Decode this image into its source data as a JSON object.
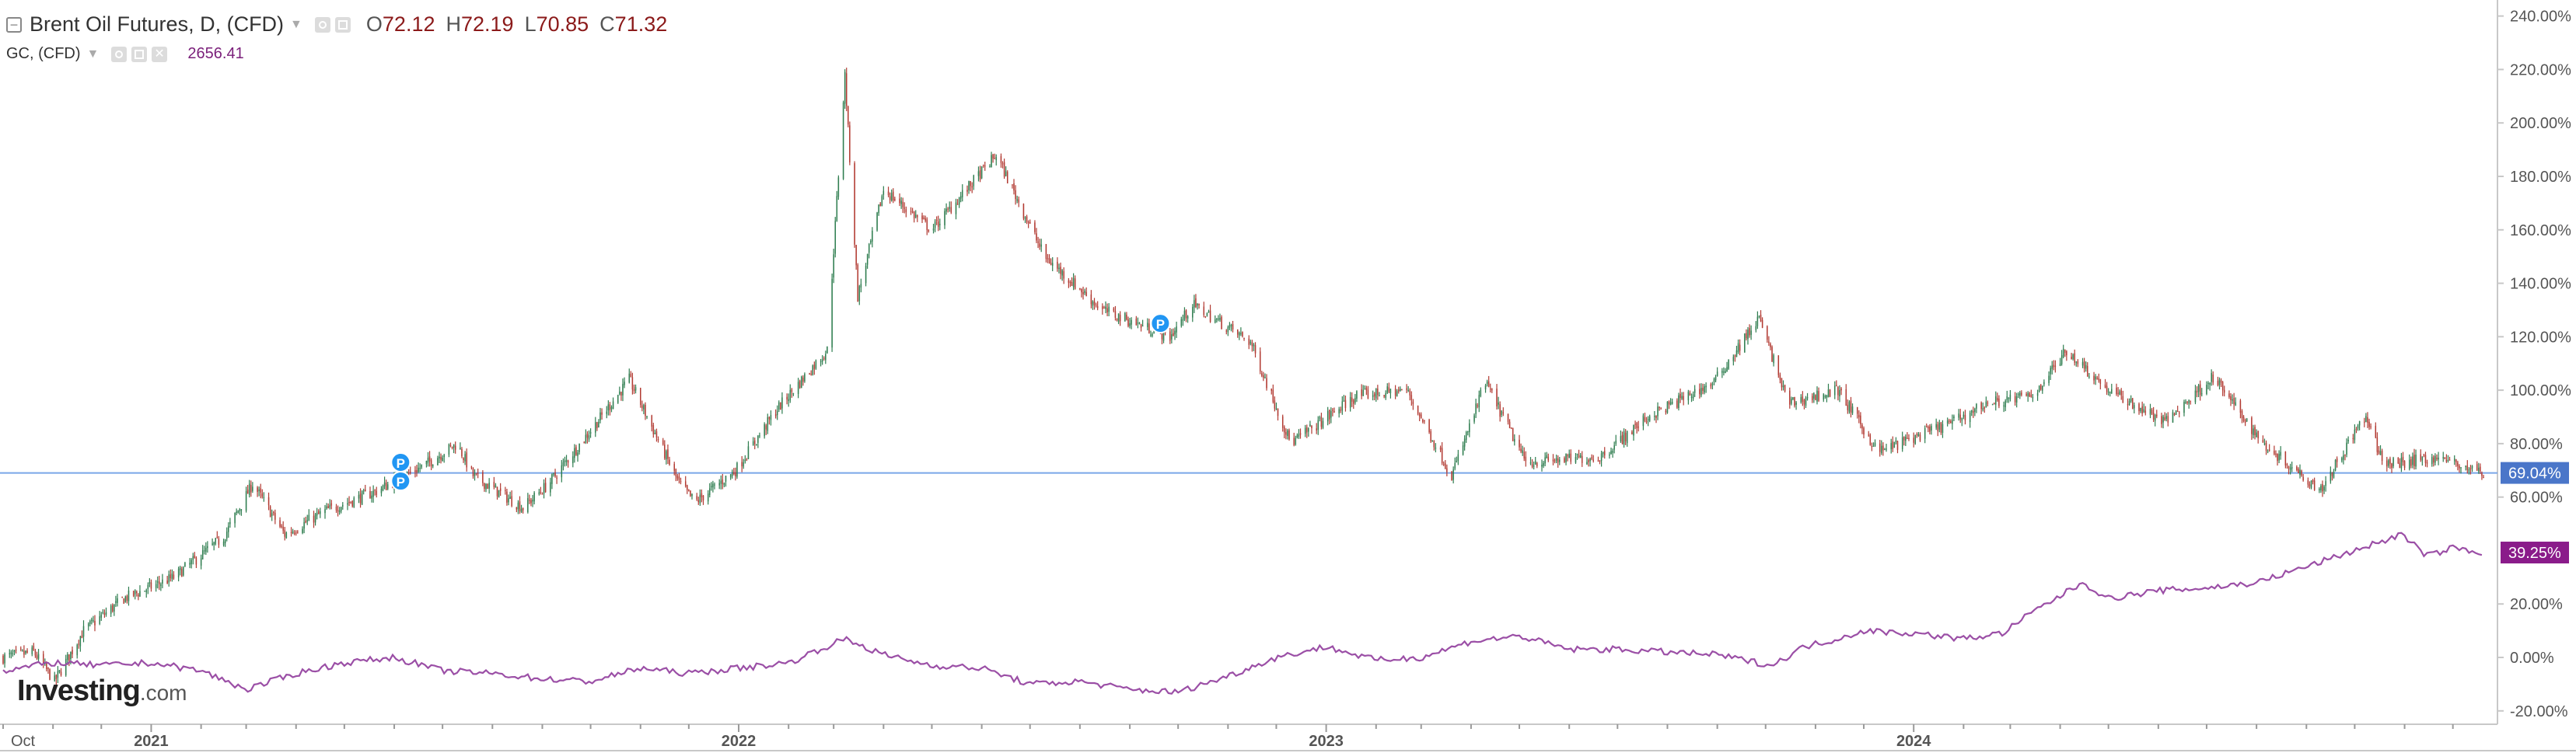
{
  "legend": {
    "main": {
      "title": "Brent Oil Futures, D, (CFD)",
      "o_label": "O",
      "o_value": "72.12",
      "h_label": "H",
      "h_value": "72.19",
      "l_label": "L",
      "l_value": "70.85",
      "c_label": "C",
      "c_value": "71.32"
    },
    "compare": {
      "title": "GC, (CFD)",
      "value": "2656.41"
    }
  },
  "logo": {
    "main": "Investing",
    "suffix": ".com"
  },
  "colors": {
    "up": "#2e7d4f",
    "down": "#b23a32",
    "compare": "#9b4fa6",
    "price_line": "#7aa6e8",
    "price_badge": "#4a76c9",
    "compare_badge": "#8a1b8a",
    "axis_text": "#555555",
    "grid_border": "#c8c8c8",
    "marker": "#2196f3"
  },
  "chart_data": {
    "type": "line",
    "title": "",
    "y_axis": {
      "unit": "%",
      "ticks": [
        "240.00%",
        "220.00%",
        "200.00%",
        "180.00%",
        "160.00%",
        "140.00%",
        "120.00%",
        "100.00%",
        "80.00%",
        "60.00%",
        "20.00%",
        "0.00%",
        "-20.00%"
      ],
      "range": [
        -25,
        246
      ]
    },
    "x_axis": {
      "tick_labels": [
        "Oct",
        "2021",
        "2022",
        "2023",
        "2024"
      ],
      "range": [
        "2020-10-01",
        "2024-12-20"
      ]
    },
    "badges": {
      "brent": "69.04%",
      "gc": "39.25%"
    },
    "price_line_value": 69.04,
    "event_markers": [
      {
        "label": "P",
        "date": "2021-06-05",
        "value": 66
      },
      {
        "label": "P",
        "date": "2021-06-05",
        "value": 73
      },
      {
        "label": "P",
        "date": "2022-09-20",
        "value": 125
      }
    ],
    "series": [
      {
        "name": "Brent Oil Futures, D, (CFD)",
        "style": "candlestick",
        "unit": "% change",
        "points": [
          [
            "2020-10-01",
            0
          ],
          [
            "2020-10-20",
            2
          ],
          [
            "2020-11-02",
            -9
          ],
          [
            "2020-11-20",
            10
          ],
          [
            "2020-12-15",
            22
          ],
          [
            "2021-01-15",
            30
          ],
          [
            "2021-02-15",
            45
          ],
          [
            "2021-03-05",
            65
          ],
          [
            "2021-03-25",
            46
          ],
          [
            "2021-04-20",
            55
          ],
          [
            "2021-05-20",
            62
          ],
          [
            "2021-06-20",
            72
          ],
          [
            "2021-07-10",
            80
          ],
          [
            "2021-07-20",
            68
          ],
          [
            "2021-08-20",
            56
          ],
          [
            "2021-09-05",
            65
          ],
          [
            "2021-10-05",
            88
          ],
          [
            "2021-10-25",
            104
          ],
          [
            "2021-11-25",
            65
          ],
          [
            "2021-12-05",
            58
          ],
          [
            "2021-12-30",
            70
          ],
          [
            "2022-01-25",
            93
          ],
          [
            "2022-02-25",
            115
          ],
          [
            "2022-03-08",
            218
          ],
          [
            "2022-03-16",
            135
          ],
          [
            "2022-04-01",
            175
          ],
          [
            "2022-05-01",
            160
          ],
          [
            "2022-06-10",
            188
          ],
          [
            "2022-07-10",
            150
          ],
          [
            "2022-08-15",
            130
          ],
          [
            "2022-09-26",
            120
          ],
          [
            "2022-10-10",
            132
          ],
          [
            "2022-11-15",
            118
          ],
          [
            "2022-12-10",
            80
          ],
          [
            "2023-01-20",
            98
          ],
          [
            "2023-02-20",
            100
          ],
          [
            "2023-03-20",
            68
          ],
          [
            "2023-04-10",
            103
          ],
          [
            "2023-05-05",
            73
          ],
          [
            "2023-06-20",
            75
          ],
          [
            "2023-07-20",
            90
          ],
          [
            "2023-08-30",
            103
          ],
          [
            "2023-09-27",
            127
          ],
          [
            "2023-10-15",
            95
          ],
          [
            "2023-11-15",
            100
          ],
          [
            "2023-12-10",
            77
          ],
          [
            "2024-01-25",
            88
          ],
          [
            "2024-02-15",
            95
          ],
          [
            "2024-03-15",
            98
          ],
          [
            "2024-04-05",
            115
          ],
          [
            "2024-05-01",
            100
          ],
          [
            "2024-06-05",
            88
          ],
          [
            "2024-07-05",
            105
          ],
          [
            "2024-08-05",
            80
          ],
          [
            "2024-09-10",
            63
          ],
          [
            "2024-10-07",
            90
          ],
          [
            "2024-10-20",
            72
          ],
          [
            "2024-11-20",
            75
          ],
          [
            "2024-12-20",
            69
          ]
        ]
      },
      {
        "name": "GC, (CFD)",
        "style": "line",
        "unit": "% change",
        "points": [
          [
            "2020-10-01",
            -5
          ],
          [
            "2020-11-01",
            -2
          ],
          [
            "2020-12-01",
            -3
          ],
          [
            "2021-01-01",
            -2
          ],
          [
            "2021-02-01",
            -5
          ],
          [
            "2021-03-01",
            -12
          ],
          [
            "2021-04-01",
            -6
          ],
          [
            "2021-05-01",
            -2
          ],
          [
            "2021-06-01",
            0
          ],
          [
            "2021-07-01",
            -5
          ],
          [
            "2021-08-01",
            -6
          ],
          [
            "2021-09-01",
            -8
          ],
          [
            "2021-10-01",
            -9
          ],
          [
            "2021-11-01",
            -4
          ],
          [
            "2021-12-01",
            -6
          ],
          [
            "2022-01-01",
            -4
          ],
          [
            "2022-02-01",
            -2
          ],
          [
            "2022-03-08",
            7
          ],
          [
            "2022-04-01",
            1
          ],
          [
            "2022-05-01",
            -3
          ],
          [
            "2022-06-01",
            -4
          ],
          [
            "2022-07-01",
            -10
          ],
          [
            "2022-08-01",
            -9
          ],
          [
            "2022-09-01",
            -12
          ],
          [
            "2022-10-01",
            -13
          ],
          [
            "2022-11-01",
            -7
          ],
          [
            "2022-12-01",
            0
          ],
          [
            "2023-01-01",
            4
          ],
          [
            "2023-02-01",
            -1
          ],
          [
            "2023-03-01",
            0
          ],
          [
            "2023-04-01",
            6
          ],
          [
            "2023-05-01",
            8
          ],
          [
            "2023-06-01",
            3
          ],
          [
            "2023-07-01",
            3
          ],
          [
            "2023-08-01",
            2
          ],
          [
            "2023-09-01",
            1
          ],
          [
            "2023-10-05",
            -3
          ],
          [
            "2023-10-25",
            4
          ],
          [
            "2023-11-15",
            7
          ],
          [
            "2023-12-01",
            10
          ],
          [
            "2024-01-01",
            9
          ],
          [
            "2024-02-01",
            7
          ],
          [
            "2024-02-25",
            9
          ],
          [
            "2024-03-15",
            17
          ],
          [
            "2024-04-15",
            28
          ],
          [
            "2024-05-01",
            22
          ],
          [
            "2024-06-01",
            25
          ],
          [
            "2024-07-01",
            26
          ],
          [
            "2024-08-01",
            28
          ],
          [
            "2024-09-01",
            34
          ],
          [
            "2024-10-01",
            40
          ],
          [
            "2024-10-30",
            46
          ],
          [
            "2024-11-15",
            38
          ],
          [
            "2024-12-01",
            41
          ],
          [
            "2024-12-20",
            39.25
          ]
        ]
      }
    ]
  }
}
